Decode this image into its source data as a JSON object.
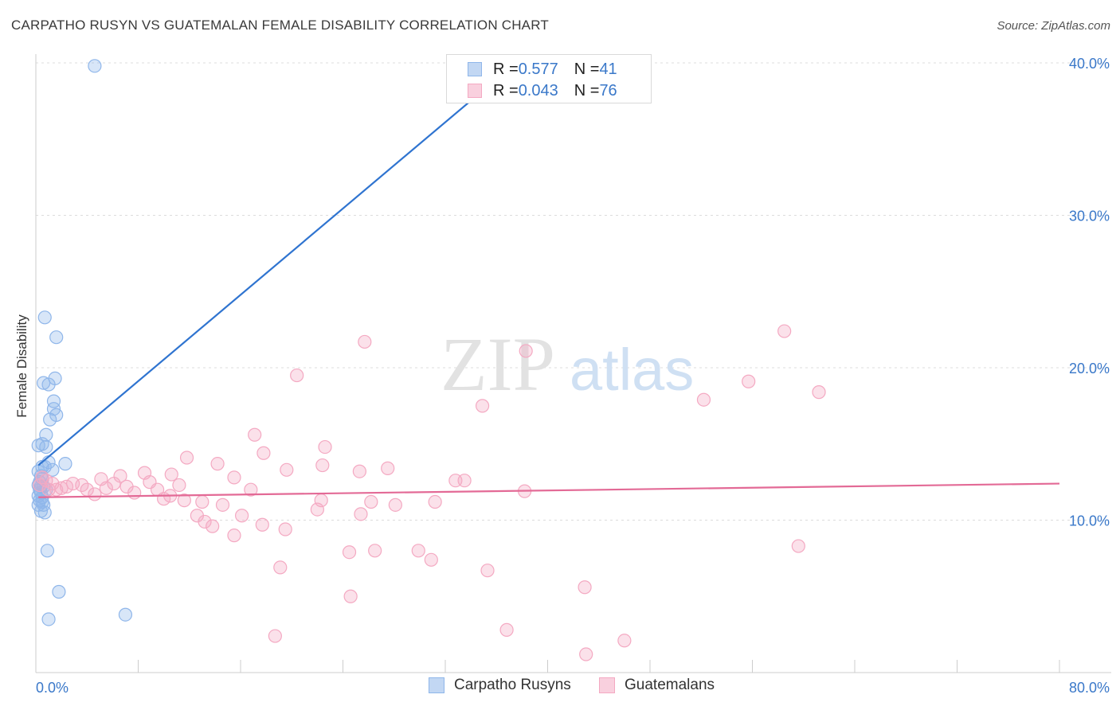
{
  "title": "CARPATHO RUSYN VS GUATEMALAN FEMALE DISABILITY CORRELATION CHART",
  "source": "Source: ZipAtlas.com",
  "watermark": {
    "zip": "ZIP",
    "atlas": "atlas"
  },
  "legend_top": [
    {
      "r_label": "R = ",
      "r": "0.577",
      "n_label": "N = ",
      "n": "41",
      "color": "#8fb6ea"
    },
    {
      "r_label": "R = ",
      "r": "0.043",
      "n_label": "N = ",
      "n": "76",
      "color": "#f4a9c2"
    }
  ],
  "legend_bottom": [
    {
      "label": "Carpatho Rusyns",
      "color": "#8fb6ea"
    },
    {
      "label": "Guatemalans",
      "color": "#f4a9c2"
    }
  ],
  "chart_data": {
    "type": "scatter",
    "title": "CARPATHO RUSYN VS GUATEMALAN FEMALE DISABILITY CORRELATION CHART",
    "xlabel": "",
    "ylabel": "Female Disability",
    "xlim": [
      0,
      80
    ],
    "ylim": [
      0,
      40
    ],
    "x_tick_labels": [
      "0.0%",
      "80.0%"
    ],
    "y_ticks": [
      10,
      20,
      30,
      40
    ],
    "y_tick_labels": [
      "10.0%",
      "20.0%",
      "30.0%",
      "40.0%"
    ],
    "grid": true,
    "series": [
      {
        "name": "Carpatho Rusyns",
        "color": "#8fb6ea",
        "line_color": "#2f74d0",
        "trend": {
          "x0": 0.2,
          "y0": 13.6,
          "x1": 37.5,
          "y1": 40.0
        },
        "points": [
          [
            4.6,
            39.8
          ],
          [
            0.7,
            23.3
          ],
          [
            1.6,
            22.0
          ],
          [
            1.5,
            19.3
          ],
          [
            0.6,
            19.0
          ],
          [
            1.0,
            18.9
          ],
          [
            1.4,
            17.8
          ],
          [
            1.4,
            17.3
          ],
          [
            1.6,
            16.9
          ],
          [
            1.1,
            16.6
          ],
          [
            0.8,
            15.6
          ],
          [
            0.5,
            15.0
          ],
          [
            0.8,
            14.8
          ],
          [
            1.0,
            13.8
          ],
          [
            2.3,
            13.7
          ],
          [
            0.5,
            13.5
          ],
          [
            0.7,
            13.5
          ],
          [
            1.3,
            13.3
          ],
          [
            0.2,
            13.2
          ],
          [
            0.5,
            12.7
          ],
          [
            0.2,
            12.3
          ],
          [
            0.4,
            12.2
          ],
          [
            0.6,
            12.2
          ],
          [
            0.3,
            12.0
          ],
          [
            0.8,
            12.0
          ],
          [
            0.4,
            11.8
          ],
          [
            0.2,
            11.6
          ],
          [
            0.3,
            11.3
          ],
          [
            0.5,
            11.2
          ],
          [
            0.2,
            11.0
          ],
          [
            0.4,
            10.6
          ],
          [
            0.7,
            10.5
          ],
          [
            0.9,
            8.0
          ],
          [
            1.8,
            5.3
          ],
          [
            1.0,
            3.5
          ],
          [
            7.0,
            3.8
          ],
          [
            0.3,
            12.5
          ],
          [
            0.6,
            11.0
          ],
          [
            0.2,
            14.9
          ],
          [
            0.4,
            12.9
          ],
          [
            0.5,
            11.5
          ]
        ]
      },
      {
        "name": "Guatemalans",
        "color": "#f4a9c2",
        "line_color": "#e36a96",
        "trend": {
          "x0": 0.2,
          "y0": 11.5,
          "x1": 80.0,
          "y1": 12.4
        },
        "points": [
          [
            58.5,
            22.4
          ],
          [
            25.7,
            21.7
          ],
          [
            38.3,
            21.1
          ],
          [
            20.4,
            19.5
          ],
          [
            55.7,
            19.1
          ],
          [
            61.2,
            18.4
          ],
          [
            52.2,
            17.9
          ],
          [
            34.9,
            17.5
          ],
          [
            17.1,
            15.6
          ],
          [
            22.6,
            14.8
          ],
          [
            17.8,
            14.4
          ],
          [
            11.8,
            14.1
          ],
          [
            14.2,
            13.7
          ],
          [
            22.4,
            13.6
          ],
          [
            27.5,
            13.4
          ],
          [
            19.6,
            13.3
          ],
          [
            25.3,
            13.2
          ],
          [
            8.5,
            13.1
          ],
          [
            10.6,
            13.0
          ],
          [
            6.6,
            12.9
          ],
          [
            5.1,
            12.7
          ],
          [
            15.5,
            12.8
          ],
          [
            32.8,
            12.6
          ],
          [
            33.5,
            12.6
          ],
          [
            0.8,
            12.6
          ],
          [
            6.1,
            12.4
          ],
          [
            1.3,
            12.4
          ],
          [
            2.9,
            12.4
          ],
          [
            8.9,
            12.5
          ],
          [
            11.2,
            12.3
          ],
          [
            3.6,
            12.3
          ],
          [
            2.4,
            12.2
          ],
          [
            4.0,
            12.0
          ],
          [
            5.5,
            12.1
          ],
          [
            7.1,
            12.2
          ],
          [
            1.0,
            12.0
          ],
          [
            1.6,
            12.0
          ],
          [
            9.5,
            12.0
          ],
          [
            16.8,
            12.0
          ],
          [
            7.7,
            11.8
          ],
          [
            4.6,
            11.7
          ],
          [
            10.5,
            11.6
          ],
          [
            38.2,
            11.9
          ],
          [
            10.0,
            11.4
          ],
          [
            11.6,
            11.3
          ],
          [
            22.3,
            11.3
          ],
          [
            13.0,
            11.2
          ],
          [
            26.2,
            11.2
          ],
          [
            31.2,
            11.2
          ],
          [
            14.6,
            11.0
          ],
          [
            28.1,
            11.0
          ],
          [
            22.0,
            10.7
          ],
          [
            25.4,
            10.4
          ],
          [
            16.1,
            10.3
          ],
          [
            12.6,
            10.3
          ],
          [
            13.2,
            9.9
          ],
          [
            13.8,
            9.6
          ],
          [
            17.7,
            9.7
          ],
          [
            19.5,
            9.4
          ],
          [
            15.5,
            9.0
          ],
          [
            59.6,
            8.3
          ],
          [
            24.5,
            7.9
          ],
          [
            26.5,
            8.0
          ],
          [
            29.9,
            8.0
          ],
          [
            30.9,
            7.4
          ],
          [
            19.1,
            6.9
          ],
          [
            35.3,
            6.7
          ],
          [
            42.9,
            5.6
          ],
          [
            24.6,
            5.0
          ],
          [
            36.8,
            2.8
          ],
          [
            18.7,
            2.4
          ],
          [
            46.0,
            2.1
          ],
          [
            43.0,
            1.2
          ],
          [
            0.5,
            12.8
          ],
          [
            2.0,
            12.1
          ],
          [
            0.3,
            12.3
          ]
        ]
      }
    ]
  }
}
